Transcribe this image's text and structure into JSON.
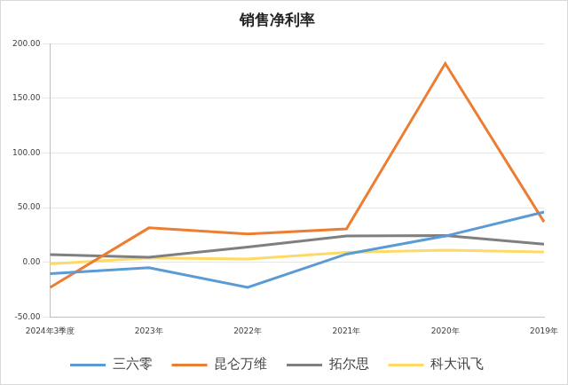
{
  "chart_data": {
    "type": "line",
    "title": "销售净利率",
    "categories": [
      "2024年3季度",
      "2023年",
      "2022年",
      "2021年",
      "2020年",
      "2019年"
    ],
    "series": [
      {
        "name": "三六零",
        "color": "#5b9bd5",
        "values": [
          -10.5,
          -5,
          -23,
          7.5,
          24,
          46
        ]
      },
      {
        "name": "昆仑万维",
        "color": "#ed7d31",
        "values": [
          -23,
          31.5,
          26,
          30.5,
          182,
          37
        ]
      },
      {
        "name": "拓尔思",
        "color": "#7f7f7f",
        "values": [
          7,
          4.5,
          14,
          24,
          24.5,
          16.5
        ]
      },
      {
        "name": "科大讯飞",
        "color": "#ffd966",
        "values": [
          -1.5,
          4,
          3,
          9,
          11,
          9.5
        ]
      }
    ],
    "ylim": [
      -50,
      200
    ],
    "yticks": [
      {
        "value": -50,
        "label": "-50.00"
      },
      {
        "value": 0,
        "label": "0.00"
      },
      {
        "value": 50,
        "label": "50.00"
      },
      {
        "value": 100,
        "label": "100.00"
      },
      {
        "value": 150,
        "label": "150.00"
      },
      {
        "value": 200,
        "label": "200.00"
      }
    ],
    "grid": true,
    "legend": "bottom"
  }
}
